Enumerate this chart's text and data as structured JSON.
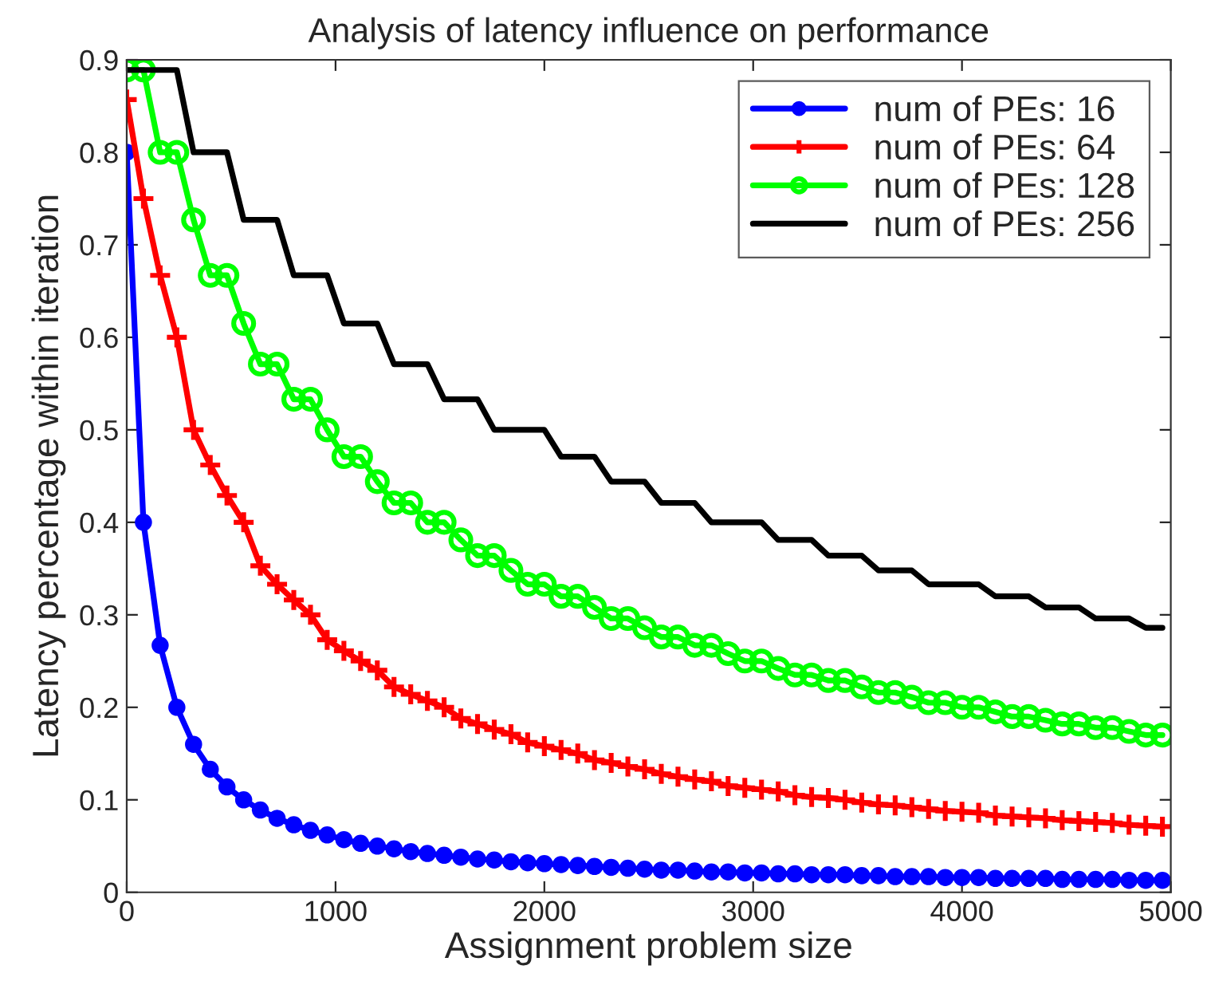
{
  "chart_data": {
    "type": "line",
    "title": "Analysis of latency influence on performance",
    "xlabel": "Assignment problem size",
    "ylabel": "Latency percentage within iteration",
    "x": [
      0,
      80,
      160,
      240,
      320,
      400,
      480,
      560,
      640,
      720,
      800,
      880,
      960,
      1040,
      1120,
      1200,
      1280,
      1360,
      1440,
      1520,
      1600,
      1680,
      1760,
      1840,
      1920,
      2000,
      2080,
      2160,
      2240,
      2320,
      2400,
      2480,
      2560,
      2640,
      2720,
      2800,
      2880,
      2960,
      3040,
      3120,
      3200,
      3280,
      3360,
      3440,
      3520,
      3600,
      3680,
      3760,
      3840,
      3920,
      4000,
      4080,
      4160,
      4240,
      4320,
      4400,
      4480,
      4560,
      4640,
      4720,
      4800,
      4880,
      4960
    ],
    "series": [
      {
        "name": "num of PEs: 16",
        "color": "#0000ff",
        "marker": "circle",
        "values": [
          0.8,
          0.4,
          0.267,
          0.2,
          0.16,
          0.133,
          0.114,
          0.1,
          0.089,
          0.08,
          0.073,
          0.067,
          0.062,
          0.057,
          0.053,
          0.05,
          0.047,
          0.044,
          0.042,
          0.04,
          0.038,
          0.036,
          0.035,
          0.033,
          0.032,
          0.031,
          0.03,
          0.029,
          0.028,
          0.027,
          0.026,
          0.025,
          0.024,
          0.024,
          0.023,
          0.022,
          0.022,
          0.021,
          0.021,
          0.02,
          0.02,
          0.019,
          0.019,
          0.019,
          0.018,
          0.018,
          0.017,
          0.017,
          0.017,
          0.016,
          0.016,
          0.016,
          0.015,
          0.015,
          0.015,
          0.015,
          0.014,
          0.014,
          0.014,
          0.014,
          0.013,
          0.013,
          0.013
        ]
      },
      {
        "name": "num of PEs: 64",
        "color": "#ff0000",
        "marker": "cross",
        "values": [
          0.857,
          0.75,
          0.667,
          0.6,
          0.5,
          0.462,
          0.429,
          0.4,
          0.353,
          0.333,
          0.316,
          0.3,
          0.273,
          0.261,
          0.25,
          0.24,
          0.222,
          0.214,
          0.207,
          0.2,
          0.188,
          0.182,
          0.176,
          0.171,
          0.162,
          0.158,
          0.154,
          0.15,
          0.143,
          0.14,
          0.136,
          0.133,
          0.128,
          0.125,
          0.122,
          0.12,
          0.115,
          0.113,
          0.111,
          0.109,
          0.105,
          0.103,
          0.102,
          0.1,
          0.097,
          0.095,
          0.094,
          0.092,
          0.09,
          0.088,
          0.087,
          0.086,
          0.083,
          0.082,
          0.081,
          0.08,
          0.078,
          0.077,
          0.076,
          0.075,
          0.073,
          0.072,
          0.071
        ]
      },
      {
        "name": "num of PEs: 128",
        "color": "#00ff00",
        "marker": "open circle",
        "values": [
          0.889,
          0.889,
          0.8,
          0.8,
          0.727,
          0.667,
          0.667,
          0.615,
          0.571,
          0.571,
          0.533,
          0.533,
          0.5,
          0.471,
          0.471,
          0.444,
          0.421,
          0.421,
          0.4,
          0.4,
          0.381,
          0.364,
          0.364,
          0.348,
          0.333,
          0.333,
          0.32,
          0.32,
          0.308,
          0.296,
          0.296,
          0.286,
          0.276,
          0.276,
          0.267,
          0.267,
          0.258,
          0.25,
          0.25,
          0.242,
          0.235,
          0.235,
          0.229,
          0.229,
          0.222,
          0.216,
          0.216,
          0.211,
          0.205,
          0.205,
          0.2,
          0.2,
          0.195,
          0.19,
          0.19,
          0.186,
          0.182,
          0.182,
          0.178,
          0.178,
          0.174,
          0.17,
          0.17
        ]
      },
      {
        "name": "num of PEs: 256",
        "color": "#000000",
        "marker": "none",
        "values": [
          0.889,
          0.889,
          0.889,
          0.889,
          0.8,
          0.8,
          0.8,
          0.727,
          0.727,
          0.727,
          0.667,
          0.667,
          0.667,
          0.615,
          0.615,
          0.615,
          0.571,
          0.571,
          0.571,
          0.533,
          0.533,
          0.533,
          0.5,
          0.5,
          0.5,
          0.5,
          0.471,
          0.471,
          0.471,
          0.444,
          0.444,
          0.444,
          0.421,
          0.421,
          0.421,
          0.4,
          0.4,
          0.4,
          0.4,
          0.381,
          0.381,
          0.381,
          0.364,
          0.364,
          0.364,
          0.348,
          0.348,
          0.348,
          0.333,
          0.333,
          0.333,
          0.333,
          0.32,
          0.32,
          0.32,
          0.308,
          0.308,
          0.308,
          0.296,
          0.296,
          0.296,
          0.286,
          0.286
        ]
      }
    ],
    "xlim": [
      0,
      5000
    ],
    "xticks": [
      0,
      1000,
      2000,
      3000,
      4000,
      5000
    ],
    "ylim": [
      0,
      0.9
    ],
    "yticks": [
      0,
      0.1,
      0.2,
      0.3,
      0.4,
      0.5,
      0.6,
      0.7,
      0.8,
      0.9
    ],
    "grid": false,
    "legend": "top right",
    "line_style": "solid"
  }
}
